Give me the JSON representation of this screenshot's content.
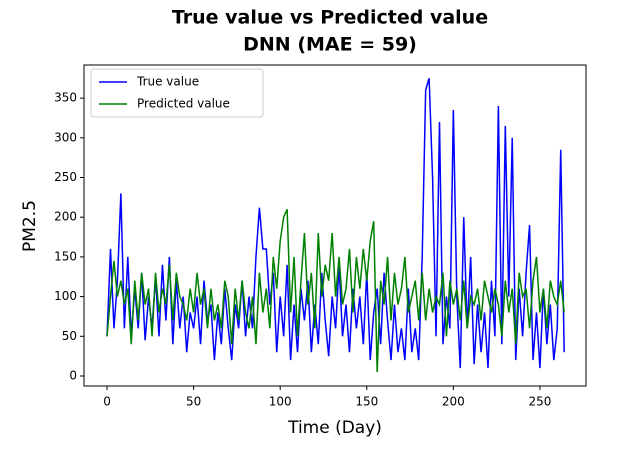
{
  "chart_data": {
    "type": "line",
    "title": "True value vs Predicted value",
    "subtitle": "DNN (MAE = 59)",
    "x_label": "Time (Day)",
    "y_label": "PM2.5",
    "legend": "upper left",
    "grid": false,
    "x": [
      0,
      2,
      4,
      6,
      8,
      10,
      12,
      14,
      16,
      18,
      20,
      22,
      24,
      26,
      28,
      30,
      32,
      34,
      36,
      38,
      40,
      42,
      44,
      46,
      48,
      50,
      52,
      54,
      56,
      58,
      60,
      62,
      64,
      66,
      68,
      70,
      72,
      74,
      76,
      78,
      80,
      82,
      84,
      86,
      88,
      90,
      92,
      94,
      96,
      98,
      100,
      102,
      104,
      106,
      108,
      110,
      112,
      114,
      116,
      118,
      120,
      122,
      124,
      126,
      128,
      130,
      132,
      134,
      136,
      138,
      140,
      142,
      144,
      146,
      148,
      150,
      152,
      154,
      156,
      158,
      160,
      162,
      164,
      166,
      168,
      170,
      172,
      174,
      176,
      178,
      180,
      182,
      184,
      186,
      188,
      190,
      192,
      194,
      196,
      198,
      200,
      202,
      204,
      206,
      208,
      210,
      212,
      214,
      216,
      218,
      220,
      222,
      224,
      226,
      228,
      230,
      232,
      234,
      236,
      238,
      240,
      242,
      244,
      246,
      248,
      250,
      252,
      254,
      256,
      258,
      260,
      262,
      264
    ],
    "series": [
      {
        "name": "True value",
        "color": "#0000ff",
        "values": [
          50,
          160,
          60,
          120,
          230,
          60,
          150,
          50,
          110,
          60,
          130,
          45,
          100,
          60,
          125,
          50,
          140,
          70,
          150,
          40,
          120,
          60,
          100,
          30,
          80,
          60,
          100,
          40,
          120,
          70,
          90,
          20,
          80,
          40,
          110,
          60,
          20,
          90,
          60,
          120,
          50,
          100,
          60,
          150,
          212,
          160,
          160,
          90,
          130,
          30,
          100,
          50,
          140,
          20,
          90,
          30,
          110,
          70,
          120,
          30,
          90,
          40,
          130,
          70,
          25,
          100,
          60,
          140,
          50,
          90,
          30,
          110,
          60,
          100,
          40,
          130,
          20,
          80,
          110,
          40,
          130,
          70,
          20,
          90,
          30,
          60,
          20,
          110,
          30,
          60,
          20,
          150,
          360,
          375,
          250,
          50,
          320,
          40,
          100,
          60,
          335,
          100,
          10,
          200,
          60,
          150,
          15,
          90,
          30,
          80,
          10,
          120,
          50,
          340,
          40,
          315,
          100,
          300,
          20,
          110,
          50,
          130,
          190,
          20,
          80,
          10,
          110,
          40,
          90,
          20,
          60,
          285,
          30
        ]
      },
      {
        "name": "Predicted value",
        "color": "#008000",
        "values": [
          50,
          100,
          145,
          100,
          120,
          90,
          110,
          40,
          120,
          70,
          130,
          90,
          110,
          50,
          130,
          80,
          110,
          90,
          140,
          70,
          130,
          100,
          90,
          70,
          110,
          80,
          130,
          90,
          110,
          60,
          110,
          70,
          90,
          60,
          120,
          100,
          40,
          110,
          70,
          120,
          80,
          60,
          100,
          40,
          130,
          80,
          110,
          60,
          150,
          110,
          170,
          200,
          210,
          80,
          150,
          50,
          120,
          180,
          90,
          130,
          60,
          180,
          100,
          140,
          120,
          180,
          100,
          150,
          90,
          110,
          160,
          80,
          150,
          110,
          160,
          120,
          170,
          195,
          5,
          120,
          90,
          150,
          70,
          130,
          90,
          110,
          150,
          80,
          100,
          120,
          70,
          130,
          70,
          110,
          80,
          100,
          90,
          130,
          50,
          120,
          90,
          110,
          70,
          120,
          60,
          100,
          90,
          110,
          70,
          120,
          100,
          80,
          110,
          90,
          50,
          120,
          80,
          110,
          40,
          130,
          100,
          110,
          60,
          120,
          150,
          80,
          110,
          60,
          120,
          100,
          90,
          120,
          80
        ]
      }
    ],
    "xlim": [
      -13.3,
      276.6
    ],
    "xticks": [
      0,
      50,
      100,
      150,
      200,
      250
    ],
    "ylim": [
      -12.6,
      391.7
    ],
    "yticks": [
      0,
      50,
      100,
      150,
      200,
      250,
      300,
      350
    ]
  }
}
